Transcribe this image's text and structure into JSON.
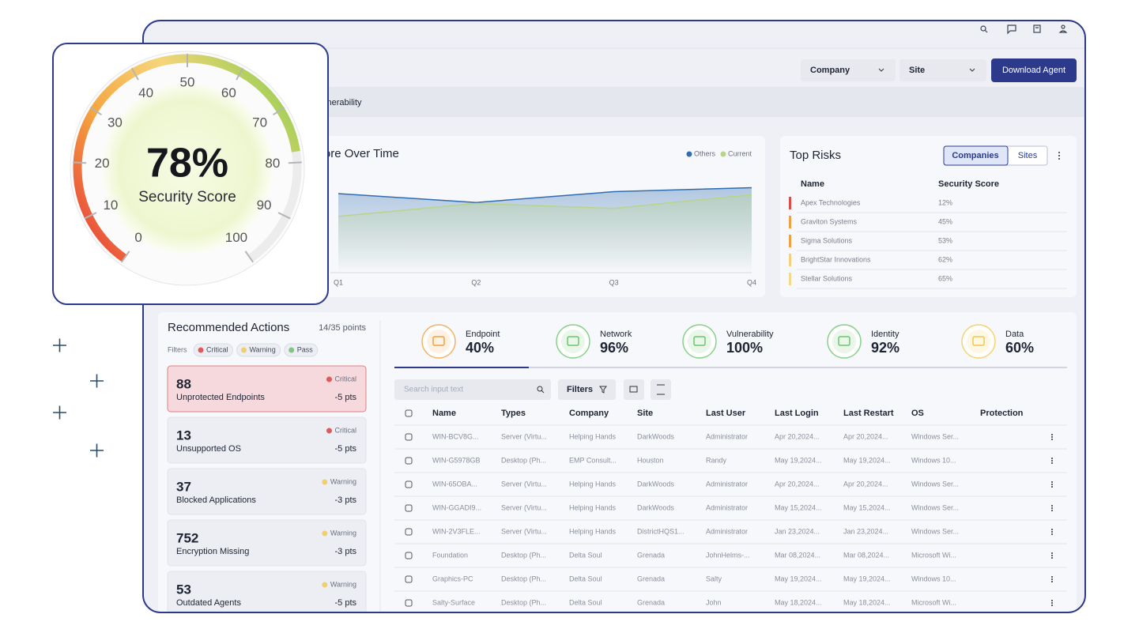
{
  "header": {
    "company_select": "Company",
    "site_select": "Site",
    "download_button": "Download Agent",
    "tab": "Vulnerability"
  },
  "gauge": {
    "value": 78,
    "value_label": "78%",
    "label": "Security Score",
    "min": 0,
    "max": 100,
    "ticks": [
      0,
      10,
      20,
      30,
      40,
      50,
      60,
      70,
      80,
      90,
      100
    ]
  },
  "score_chart": {
    "title": "Security Score Over Time",
    "categories": [
      "Q1",
      "Q2",
      "Q3",
      "Q4"
    ],
    "ylim": [
      0,
      100
    ],
    "series": [
      {
        "name": "Others",
        "color": "#2f6db0",
        "values": [
          80,
          71,
          82,
          86
        ]
      },
      {
        "name": "Current",
        "color": "#b9d48a",
        "values": [
          57,
          70,
          65,
          79
        ]
      }
    ]
  },
  "top_risks": {
    "title": "Top Risks",
    "toggle": [
      "Companies",
      "Sites"
    ],
    "columns": [
      "Name",
      "Security Score"
    ],
    "rows": [
      {
        "name": "Apex Technologies",
        "score": "12%",
        "color": "#e04a4a"
      },
      {
        "name": "Graviton Systems",
        "score": "45%",
        "color": "#f0a040"
      },
      {
        "name": "Sigma Solutions",
        "score": "53%",
        "color": "#f0a040"
      },
      {
        "name": "BrightStar Innovations",
        "score": "62%",
        "color": "#f5cf7a"
      },
      {
        "name": "Stellar Solutions",
        "score": "65%",
        "color": "#f5d98a"
      }
    ]
  },
  "actions": {
    "title": "Recommended Actions",
    "points": "14/35 points",
    "filters_label": "Filters",
    "filters": [
      {
        "label": "Critical",
        "color": "#e05a5a"
      },
      {
        "label": "Warning",
        "color": "#f2cf6e"
      },
      {
        "label": "Pass",
        "color": "#7ec77e"
      }
    ],
    "items": [
      {
        "count": 88,
        "label": "Unprotected Endpoints",
        "severity": "Critical",
        "points": "-5 pts",
        "selected": true
      },
      {
        "count": 13,
        "label": "Unsupported OS",
        "severity": "Critical",
        "points": "-5 pts"
      },
      {
        "count": 37,
        "label": "Blocked Applications",
        "severity": "Warning",
        "points": "-3 pts"
      },
      {
        "count": 752,
        "label": "Encryption Missing",
        "severity": "Warning",
        "points": "-3 pts"
      },
      {
        "count": 53,
        "label": "Outdated Agents",
        "severity": "Warning",
        "points": "-5 pts"
      }
    ]
  },
  "categories": [
    {
      "name": "Endpoint",
      "score": "40%",
      "color": "#f0a040"
    },
    {
      "name": "Network",
      "score": "96%",
      "color": "#6cc56c"
    },
    {
      "name": "Vulnerability",
      "score": "100%",
      "color": "#6cc56c"
    },
    {
      "name": "Identity",
      "score": "92%",
      "color": "#6cc56c"
    },
    {
      "name": "Data",
      "score": "60%",
      "color": "#f2c94c"
    }
  ],
  "table": {
    "search_placeholder": "Search input text",
    "filters_button": "Filters",
    "columns": [
      "Name",
      "Types",
      "Company",
      "Site",
      "Last User",
      "Last Login",
      "Last Restart",
      "OS",
      "Protection"
    ],
    "rows": [
      [
        "WIN-BCV8G...",
        "Server (Virtu...",
        "Helping Hands",
        "DarkWoods",
        "Administrator",
        "Apr 20,2024...",
        "Apr 20,2024...",
        "Windows Ser..."
      ],
      [
        "WIN-G5978GB",
        "Desktop (Ph...",
        "EMP Consult...",
        "Houston",
        "Randy",
        "May 19,2024...",
        "May 19,2024...",
        "Windows 10..."
      ],
      [
        "WIN-65OBA...",
        "Server (Virtu...",
        "Helping Hands",
        "DarkWoods",
        "Administrator",
        "Apr 20,2024...",
        "Apr 20,2024...",
        "Windows Ser..."
      ],
      [
        "WIN-GGADI9...",
        "Server (Virtu...",
        "Helping Hands",
        "DarkWoods",
        "Administrator",
        "May 15,2024...",
        "May 15,2024...",
        "Windows Ser..."
      ],
      [
        "WIN-2V3FLE...",
        "Server (Virtu...",
        "Helping Hands",
        "DistrictHQS1...",
        "Administrator",
        "Jan 23,2024...",
        "Jan 23,2024...",
        "Windows Ser..."
      ],
      [
        "Foundation",
        "Desktop (Ph...",
        "Delta Soul",
        "Grenada",
        "JohnHelms-...",
        "Mar 08,2024...",
        "Mar 08,2024...",
        "Microsoft Wi..."
      ],
      [
        "Graphics-PC",
        "Desktop (Ph...",
        "Delta Soul",
        "Grenada",
        "Salty",
        "May 19,2024...",
        "May 19,2024...",
        "Windows 10..."
      ],
      [
        "Salty-Surface",
        "Desktop (Ph...",
        "Delta Soul",
        "Grenada",
        "John",
        "May 18,2024...",
        "May 18,2024...",
        "Microsoft Wi..."
      ]
    ]
  }
}
